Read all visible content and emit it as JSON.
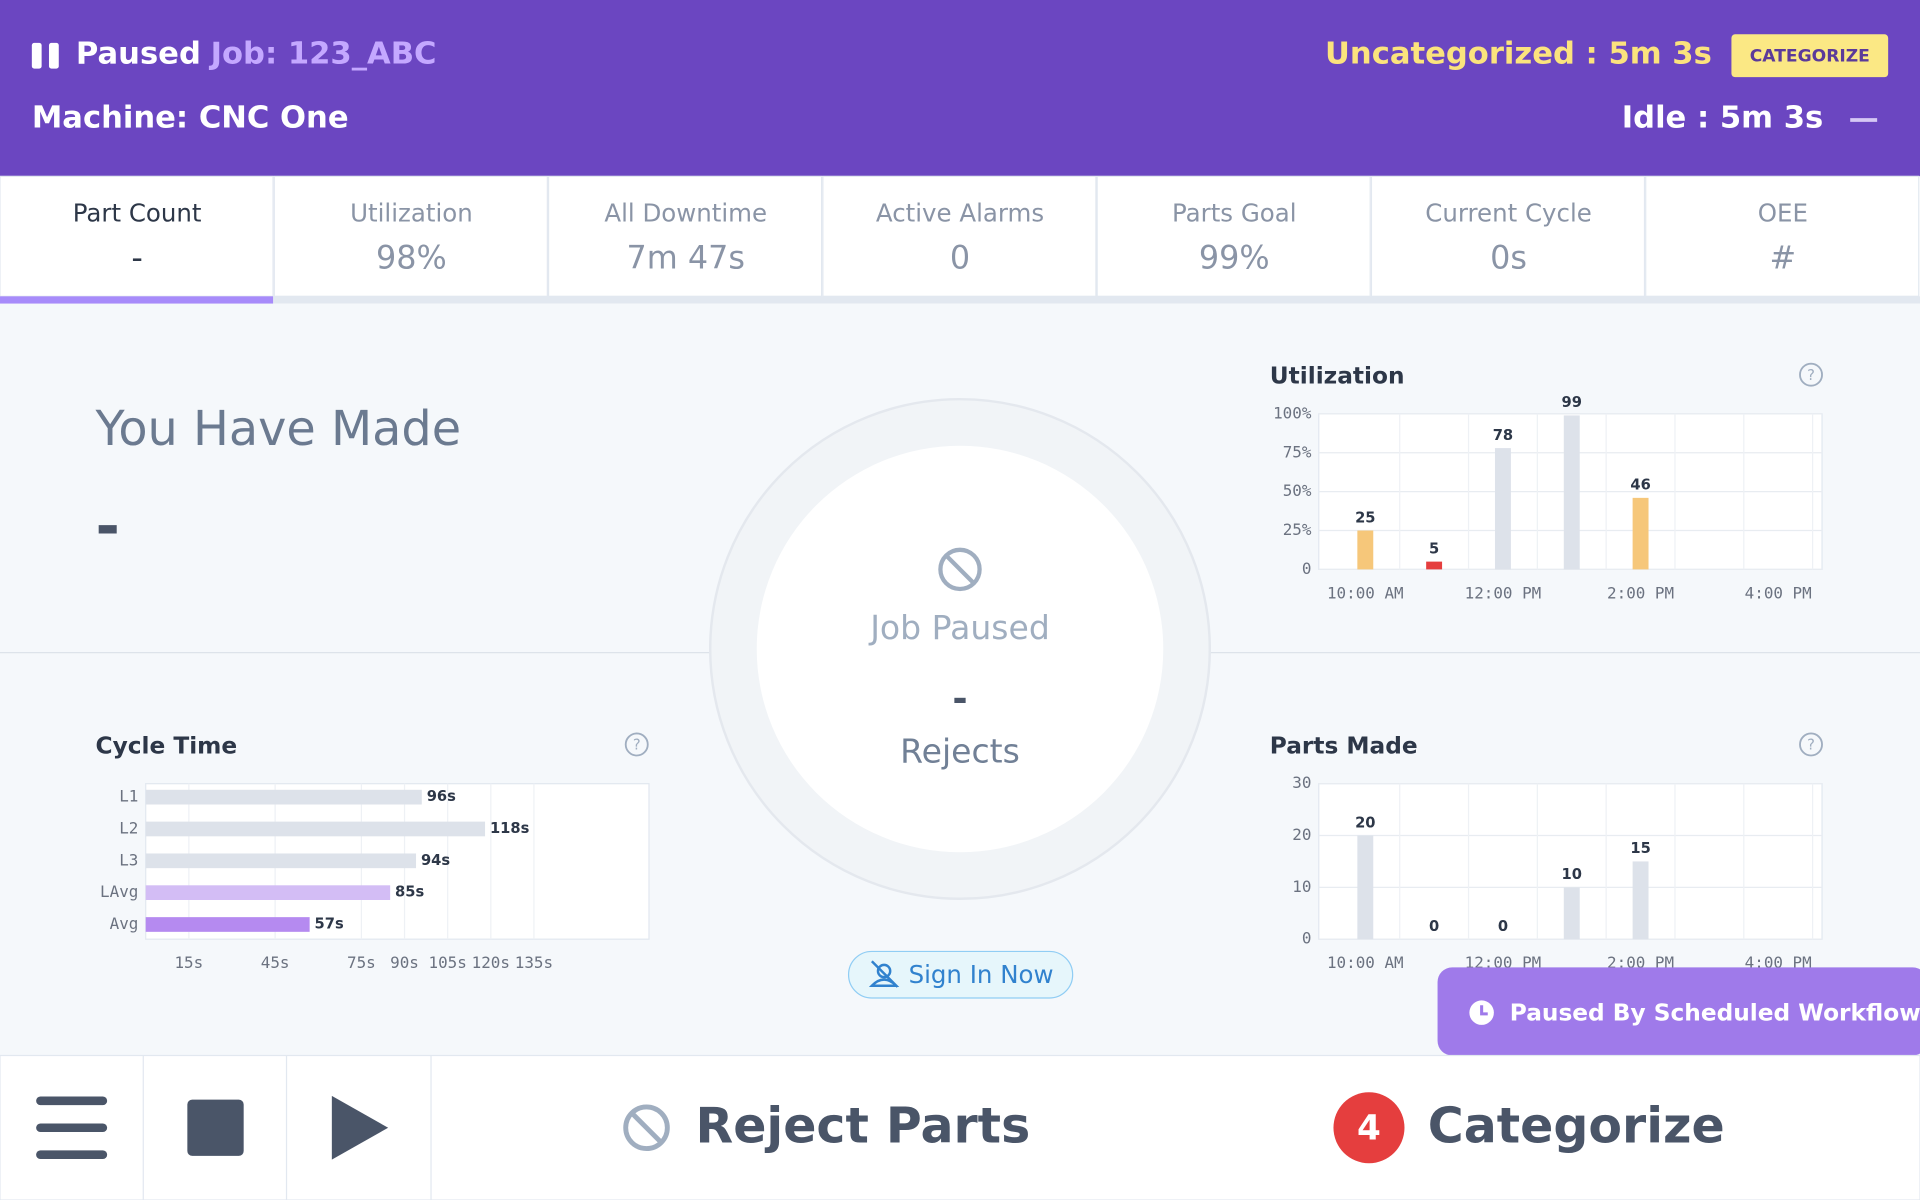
{
  "header": {
    "status": "Paused",
    "job": "Job: 123_ABC",
    "machine": "Machine: CNC One",
    "uncategorized": "Uncategorized : 5m 3s",
    "categorize_button": "CATEGORIZE",
    "idle": "Idle : 5m 3s"
  },
  "tabs": [
    {
      "label": "Part Count",
      "value": "-"
    },
    {
      "label": "Utilization",
      "value": "98%"
    },
    {
      "label": "All Downtime",
      "value": "7m 47s"
    },
    {
      "label": "Active Alarms",
      "value": "0"
    },
    {
      "label": "Parts Goal",
      "value": "99%"
    },
    {
      "label": "Current Cycle",
      "value": "0s"
    },
    {
      "label": "OEE",
      "value": "#"
    }
  ],
  "made": {
    "title": "You Have Made",
    "value": "-"
  },
  "center": {
    "status": "Job Paused",
    "value": "-",
    "label": "Rejects",
    "sign_in": "Sign In Now"
  },
  "toast": "Paused By Scheduled Workflow",
  "footer": {
    "reject": "Reject Parts",
    "badge": 4,
    "categorize": "Categorize"
  },
  "chart_data": [
    {
      "type": "bar",
      "title": "Utilization",
      "categories": [
        "10:00 AM",
        null,
        "12:00 PM",
        null,
        "2:00 PM",
        null,
        "4:00 PM"
      ],
      "values": [
        25,
        5,
        78,
        99,
        46,
        null,
        null
      ],
      "colors": [
        "#f6c77a",
        "#e53e3e",
        "#dde2ea",
        "#dde2ea",
        "#f6c77a",
        null,
        null
      ],
      "ylim": [
        0,
        100
      ],
      "yticks": [
        0,
        {
          "value": 25,
          "label": "25%"
        },
        {
          "value": 50,
          "label": "50%"
        },
        {
          "value": 75,
          "label": "75%"
        },
        {
          "value": 100,
          "label": "100%"
        }
      ],
      "grid": true
    },
    {
      "type": "bar",
      "title": "Parts Made",
      "categories": [
        "10:00 AM",
        null,
        "12:00 PM",
        null,
        "2:00 PM",
        null,
        "4:00 PM"
      ],
      "values": [
        20,
        0,
        0,
        10,
        15,
        null,
        null
      ],
      "colors": [
        "#dde2ea",
        "#e53e3e",
        "#e53e3e",
        "#dde2ea",
        "#dde2ea",
        null,
        null
      ],
      "ylim": [
        0,
        30
      ],
      "yticks": [
        0,
        10,
        20,
        30
      ],
      "grid": true
    },
    {
      "type": "barh",
      "title": "Cycle Time",
      "categories": [
        "L1",
        "L2",
        "L3",
        "LAvg",
        "Avg"
      ],
      "values": [
        96,
        118,
        94,
        85,
        57
      ],
      "value_labels": [
        "96s",
        "118s",
        "94s",
        "85s",
        "57s"
      ],
      "colors": [
        "#dde2ea",
        "#dde2ea",
        "#dde2ea",
        "#d3bdf5",
        "#b58af0"
      ],
      "xlim": [
        0,
        175
      ],
      "xticks": [
        {
          "value": 15,
          "label": "15s"
        },
        {
          "value": 45,
          "label": "45s"
        },
        {
          "value": 75,
          "label": "75s"
        },
        {
          "value": 90,
          "label": "90s"
        },
        {
          "value": 105,
          "label": "105s"
        },
        {
          "value": 120,
          "label": "120s"
        },
        {
          "value": 135,
          "label": "135s"
        }
      ],
      "grid": true
    }
  ]
}
